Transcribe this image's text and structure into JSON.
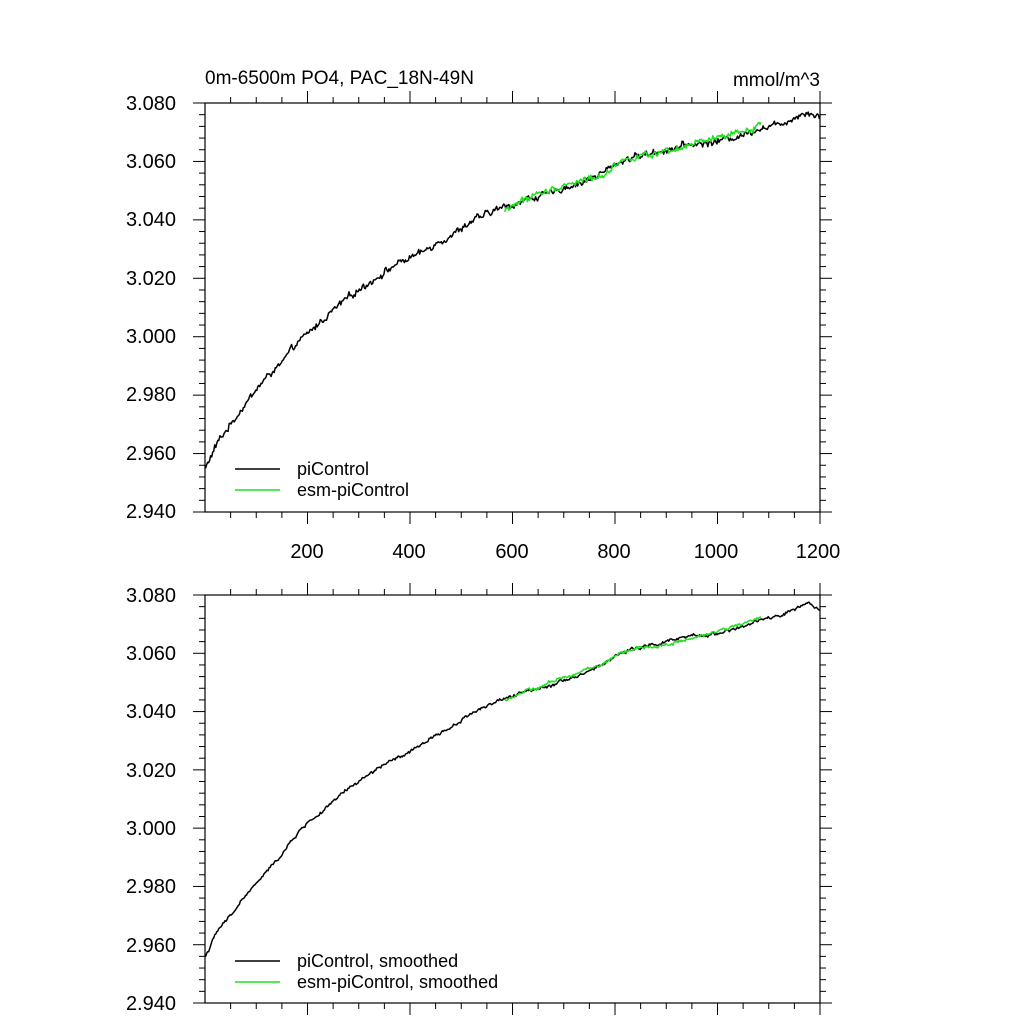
{
  "colors": {
    "piControl": "#000000",
    "esm": "#1ee01e",
    "background": "#ffffff"
  },
  "chart_data": [
    {
      "type": "line",
      "title": "0m-6500m PO4, PAC_18N-49N",
      "units": "mmol/m^3",
      "xlim": [
        0,
        1200
      ],
      "ylim": [
        2.94,
        3.08
      ],
      "x_tick_labels": [
        "200",
        "400",
        "600",
        "800",
        "1000",
        "1200"
      ],
      "y_tick_labels": [
        "2.940",
        "2.960",
        "2.980",
        "3.000",
        "3.020",
        "3.040",
        "3.060",
        "3.080"
      ],
      "legend_position": "bottom-left",
      "series": [
        {
          "name": "piControl",
          "color": "#000000",
          "x": [
            1,
            25,
            50,
            75,
            100,
            125,
            150,
            175,
            200,
            225,
            250,
            275,
            300,
            325,
            350,
            375,
            400,
            425,
            450,
            475,
            500,
            525,
            550,
            575,
            600,
            625,
            650,
            675,
            700,
            725,
            750,
            775,
            800,
            825,
            850,
            875,
            900,
            925,
            950,
            975,
            1000,
            1025,
            1050,
            1075,
            1100,
            1125,
            1150,
            1175,
            1200
          ],
          "y": [
            2.955,
            2.964,
            2.97,
            2.976,
            2.982,
            2.987,
            2.991,
            2.997,
            3.001,
            3.005,
            3.009,
            3.013,
            3.016,
            3.019,
            3.022,
            3.025,
            3.027,
            3.029,
            3.032,
            3.034,
            3.037,
            3.04,
            3.042,
            3.044,
            3.045,
            3.047,
            3.048,
            3.049,
            3.051,
            3.052,
            3.054,
            3.056,
            3.059,
            3.061,
            3.062,
            3.063,
            3.064,
            3.065,
            3.066,
            3.066,
            3.067,
            3.068,
            3.069,
            3.071,
            3.072,
            3.073,
            3.075,
            3.077,
            3.075
          ]
        },
        {
          "name": "esm-piControl",
          "color": "#1ee01e",
          "x": [
            585,
            600,
            625,
            650,
            675,
            700,
            725,
            750,
            775,
            800,
            825,
            850,
            875,
            900,
            925,
            950,
            975,
            1000,
            1025,
            1050,
            1075,
            1085
          ],
          "y": [
            3.043,
            3.045,
            3.047,
            3.049,
            3.05,
            3.052,
            3.053,
            3.054,
            3.055,
            3.059,
            3.061,
            3.062,
            3.062,
            3.063,
            3.064,
            3.066,
            3.067,
            3.068,
            3.069,
            3.07,
            3.072,
            3.073
          ]
        }
      ]
    },
    {
      "type": "line",
      "title": "",
      "units": "",
      "xlim": [
        0,
        1200
      ],
      "ylim": [
        2.94,
        3.08
      ],
      "x_tick_labels": [],
      "y_tick_labels": [
        "2.940",
        "2.960",
        "2.980",
        "3.000",
        "3.020",
        "3.040",
        "3.060",
        "3.080"
      ],
      "legend_position": "bottom-left",
      "series": [
        {
          "name": "piControl, smoothed",
          "color": "#000000",
          "x": [
            1,
            25,
            50,
            75,
            100,
            125,
            150,
            175,
            200,
            225,
            250,
            275,
            300,
            325,
            350,
            375,
            400,
            425,
            450,
            475,
            500,
            525,
            550,
            575,
            600,
            625,
            650,
            675,
            700,
            725,
            750,
            775,
            800,
            825,
            850,
            875,
            900,
            925,
            950,
            975,
            1000,
            1025,
            1050,
            1075,
            1100,
            1125,
            1150,
            1175,
            1200
          ],
          "y": [
            2.956,
            2.965,
            2.97,
            2.976,
            2.981,
            2.986,
            2.991,
            2.997,
            3.002,
            3.005,
            3.009,
            3.013,
            3.016,
            3.019,
            3.022,
            3.024,
            3.026,
            3.029,
            3.032,
            3.034,
            3.037,
            3.04,
            3.042,
            3.044,
            3.045,
            3.047,
            3.048,
            3.049,
            3.051,
            3.052,
            3.054,
            3.056,
            3.059,
            3.061,
            3.062,
            3.063,
            3.064,
            3.065,
            3.066,
            3.066,
            3.067,
            3.068,
            3.069,
            3.071,
            3.072,
            3.073,
            3.075,
            3.077,
            3.075
          ]
        },
        {
          "name": "esm-piControl, smoothed",
          "color": "#1ee01e",
          "x": [
            585,
            600,
            625,
            650,
            675,
            700,
            725,
            750,
            775,
            800,
            825,
            850,
            875,
            900,
            925,
            950,
            975,
            1000,
            1025,
            1050,
            1075,
            1085
          ],
          "y": [
            3.044,
            3.045,
            3.047,
            3.048,
            3.05,
            3.052,
            3.053,
            3.055,
            3.056,
            3.059,
            3.061,
            3.062,
            3.062,
            3.063,
            3.064,
            3.065,
            3.066,
            3.068,
            3.069,
            3.07,
            3.072,
            3.072
          ]
        }
      ]
    }
  ]
}
